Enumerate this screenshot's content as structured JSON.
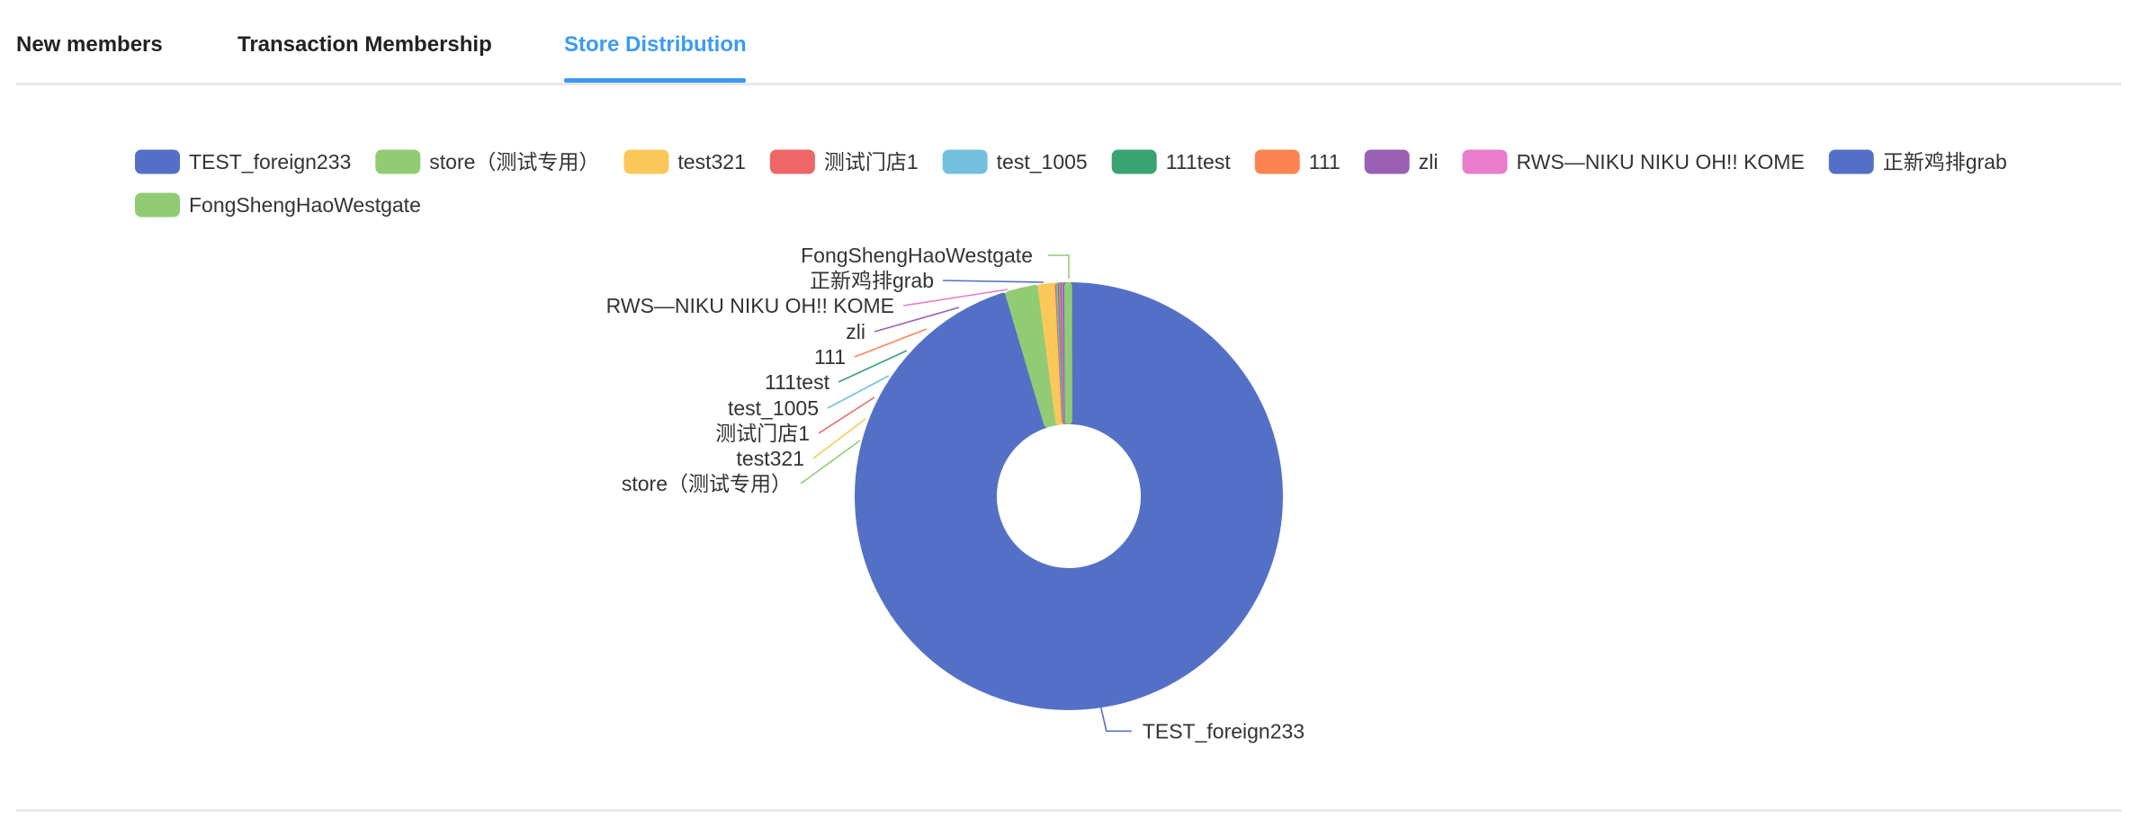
{
  "tabs": [
    {
      "label": "New members"
    },
    {
      "label": "Transaction Membership"
    },
    {
      "label": "Store Distribution"
    }
  ],
  "active_tab": 2,
  "colors": {
    "accent": "#3a9bf4",
    "palette": [
      "#5470c6",
      "#91cc75",
      "#fac858",
      "#ee6666",
      "#73c0de",
      "#3ba272",
      "#fc8452",
      "#9a60b4",
      "#ea7ccc",
      "#5470c6",
      "#91cc75"
    ]
  },
  "chart_data": {
    "type": "pie",
    "variant": "donut",
    "legend_position": "top",
    "categories": [
      "TEST_foreign233",
      "store（测试专用）",
      "test321",
      "测试门店1",
      "test_1005",
      "111test",
      "111",
      "zli",
      "RWS—NIKU NIKU OH!! KOME",
      "正新鸡排grab",
      "FongShengHaoWestgate"
    ],
    "values": [
      95,
      2.5,
      1.5,
      0.1,
      0.1,
      0.1,
      0.1,
      0.1,
      0.1,
      0.1,
      0.1
    ]
  }
}
